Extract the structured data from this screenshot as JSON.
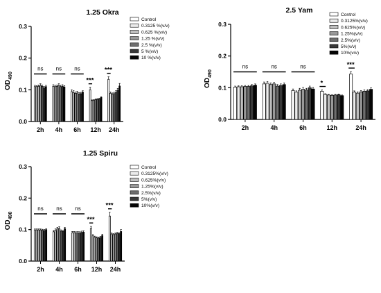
{
  "colors": {
    "series": [
      "#ffffff",
      "#ebebeb",
      "#bfbfbf",
      "#999999",
      "#6e6e6e",
      "#383838",
      "#050505"
    ],
    "stroke": "#000000"
  },
  "chart_data": [
    {
      "type": "bar",
      "title": "1.25 Okra",
      "ylabel": "OD",
      "ylabel_sub": "490",
      "ylim": [
        0.0,
        0.3
      ],
      "yticks": [
        "0.0",
        "0.1",
        "0.2",
        "0.3"
      ],
      "categories": [
        "2h",
        "4h",
        "6h",
        "12h",
        "24h"
      ],
      "series": [
        {
          "name": "Control",
          "values": [
            0.11,
            0.111,
            0.094,
            0.1,
            0.133
          ],
          "errors": [
            0.004,
            0.005,
            0.006,
            0.008,
            0.008
          ]
        },
        {
          "name": "0.3125 %(v/v)",
          "values": [
            0.11,
            0.11,
            0.091,
            0.066,
            0.089
          ],
          "errors": [
            0.003,
            0.004,
            0.006,
            0.002,
            0.004
          ]
        },
        {
          "name": "0.625 %(v/v)",
          "values": [
            0.111,
            0.111,
            0.089,
            0.067,
            0.086
          ],
          "errors": [
            0.004,
            0.004,
            0.004,
            0.002,
            0.004
          ]
        },
        {
          "name": "1.25 %(v/v)",
          "values": [
            0.114,
            0.114,
            0.09,
            0.069,
            0.088
          ],
          "errors": [
            0.005,
            0.005,
            0.005,
            0.002,
            0.004
          ]
        },
        {
          "name": "2.5 %(v/v)",
          "values": [
            0.111,
            0.11,
            0.087,
            0.07,
            0.092
          ],
          "errors": [
            0.004,
            0.004,
            0.004,
            0.002,
            0.005
          ]
        },
        {
          "name": "5 %(v/v)",
          "values": [
            0.106,
            0.111,
            0.088,
            0.071,
            0.099
          ],
          "errors": [
            0.004,
            0.005,
            0.004,
            0.002,
            0.005
          ]
        },
        {
          "name": "10 %(v/v)",
          "values": [
            0.11,
            0.109,
            0.093,
            0.076,
            0.112
          ],
          "errors": [
            0.004,
            0.004,
            0.004,
            0.002,
            0.008
          ]
        }
      ],
      "annotations": [
        "ns",
        "ns",
        "ns",
        "***",
        "***"
      ]
    },
    {
      "type": "bar",
      "title": "2.5 Yam",
      "ylabel": "OD",
      "ylabel_sub": "490",
      "ylim": [
        0.0,
        0.3
      ],
      "yticks": [
        "0.0",
        "0.1",
        "0.2",
        "0.3"
      ],
      "categories": [
        "2h",
        "4h",
        "6h",
        "12h",
        "24h"
      ],
      "series": [
        {
          "name": "Control",
          "values": [
            0.102,
            0.112,
            0.091,
            0.089,
            0.143
          ],
          "errors": [
            0.003,
            0.006,
            0.005,
            0.004,
            0.008
          ]
        },
        {
          "name": "0.3125%(v/v)",
          "values": [
            0.103,
            0.114,
            0.086,
            0.079,
            0.086
          ],
          "errors": [
            0.003,
            0.005,
            0.004,
            0.002,
            0.004
          ]
        },
        {
          "name": "0.625%(v/v)",
          "values": [
            0.103,
            0.11,
            0.092,
            0.077,
            0.083
          ],
          "errors": [
            0.003,
            0.005,
            0.006,
            0.002,
            0.004
          ]
        },
        {
          "name": "1.25%(v/v)",
          "values": [
            0.104,
            0.112,
            0.095,
            0.076,
            0.087
          ],
          "errors": [
            0.003,
            0.005,
            0.006,
            0.002,
            0.004
          ]
        },
        {
          "name": "2.5%(v/v)",
          "values": [
            0.104,
            0.105,
            0.093,
            0.077,
            0.089
          ],
          "errors": [
            0.003,
            0.005,
            0.005,
            0.002,
            0.004
          ]
        },
        {
          "name": "5%(v/v)",
          "values": [
            0.106,
            0.107,
            0.1,
            0.078,
            0.09
          ],
          "errors": [
            0.004,
            0.005,
            0.005,
            0.002,
            0.004
          ]
        },
        {
          "name": "10%(v/v)",
          "values": [
            0.108,
            0.11,
            0.096,
            0.075,
            0.095
          ],
          "errors": [
            0.004,
            0.005,
            0.005,
            0.002,
            0.005
          ]
        }
      ],
      "annotations": [
        "ns",
        "ns",
        "ns",
        "*",
        "***"
      ]
    },
    {
      "type": "bar",
      "title": "1.25 Spiru",
      "ylabel": "OD",
      "ylabel_sub": "490",
      "ylim": [
        0.0,
        0.3
      ],
      "yticks": [
        "0.0",
        "0.1",
        "0.2",
        "0.3"
      ],
      "categories": [
        "2h",
        "4h",
        "6h",
        "12h",
        "24h"
      ],
      "series": [
        {
          "name": "Control",
          "values": [
            0.099,
            0.093,
            0.09,
            0.104,
            0.143
          ],
          "errors": [
            0.003,
            0.004,
            0.004,
            0.006,
            0.012
          ]
        },
        {
          "name": "0.3125%(v/v)",
          "values": [
            0.099,
            0.097,
            0.09,
            0.08,
            0.086
          ],
          "errors": [
            0.003,
            0.005,
            0.004,
            0.004,
            0.003
          ]
        },
        {
          "name": "0.625%(v/v)",
          "values": [
            0.099,
            0.102,
            0.089,
            0.076,
            0.084
          ],
          "errors": [
            0.003,
            0.005,
            0.004,
            0.003,
            0.003
          ]
        },
        {
          "name": "1.25%(v/v)",
          "values": [
            0.099,
            0.104,
            0.09,
            0.074,
            0.086
          ],
          "errors": [
            0.003,
            0.005,
            0.004,
            0.003,
            0.003
          ]
        },
        {
          "name": "2.5%(v/v)",
          "values": [
            0.098,
            0.095,
            0.089,
            0.073,
            0.088
          ],
          "errors": [
            0.003,
            0.004,
            0.004,
            0.003,
            0.003
          ]
        },
        {
          "name": "5%(v/v)",
          "values": [
            0.097,
            0.094,
            0.091,
            0.075,
            0.087
          ],
          "errors": [
            0.003,
            0.004,
            0.004,
            0.003,
            0.003
          ]
        },
        {
          "name": "10%(v/v)",
          "values": [
            0.1,
            0.103,
            0.092,
            0.081,
            0.094
          ],
          "errors": [
            0.003,
            0.004,
            0.004,
            0.004,
            0.006
          ]
        }
      ],
      "annotations": [
        "ns",
        "ns",
        "ns",
        "***",
        "***"
      ]
    }
  ]
}
